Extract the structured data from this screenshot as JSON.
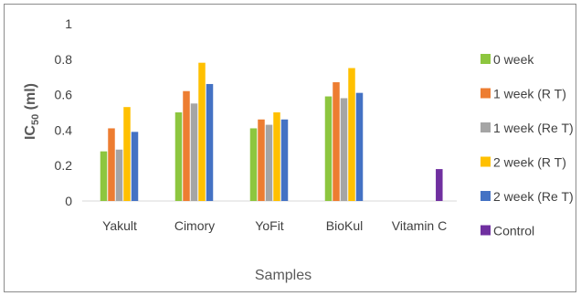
{
  "chart_data": {
    "type": "bar",
    "xlabel": "Samples",
    "ylabel": "IC50 (ml)",
    "ylabel_main": "IC",
    "ylabel_sub": "50",
    "ylabel_rest": " (ml)",
    "ylim": [
      0,
      1
    ],
    "yticks": [
      "0",
      "0.2",
      "0.4",
      "0.6",
      "0.8",
      "1"
    ],
    "grid": false,
    "legend_position": "right",
    "categories": [
      "Yakult",
      "Cimory",
      "YoFit",
      "BioKul",
      "Vitamin C"
    ],
    "series": [
      {
        "name": "0 week",
        "color": "#8dc63f",
        "values": [
          0.28,
          0.5,
          0.41,
          0.59,
          null
        ]
      },
      {
        "name": "1 week (R T)",
        "color": "#ed7d31",
        "values": [
          0.41,
          0.62,
          0.46,
          0.67,
          null
        ]
      },
      {
        "name": "1 week (Re T)",
        "color": "#a5a5a5",
        "values": [
          0.29,
          0.55,
          0.43,
          0.58,
          null
        ]
      },
      {
        "name": "2 week (R T)",
        "color": "#ffc000",
        "values": [
          0.53,
          0.78,
          0.5,
          0.75,
          null
        ]
      },
      {
        "name": "2 week (Re T)",
        "color": "#4472c4",
        "values": [
          0.39,
          0.66,
          0.46,
          0.61,
          null
        ]
      },
      {
        "name": "Control",
        "color": "#7030a0",
        "values": [
          null,
          null,
          null,
          null,
          0.18
        ]
      }
    ]
  }
}
